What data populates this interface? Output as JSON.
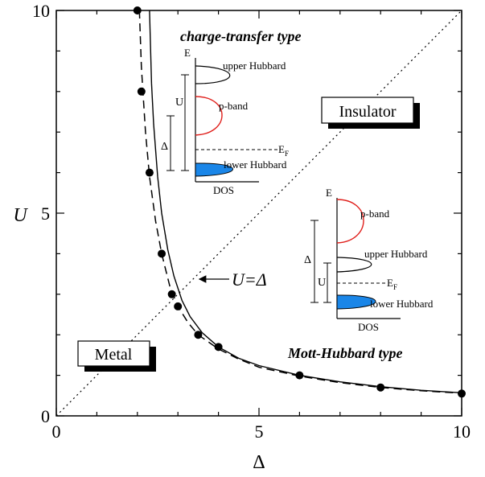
{
  "chart_data": {
    "type": "line",
    "xlabel": "Δ",
    "ylabel": "U",
    "xlim": [
      0,
      10
    ],
    "ylim": [
      0,
      10
    ],
    "x_ticks": [
      "0",
      "5",
      "10"
    ],
    "y_ticks": [
      "0",
      "5",
      "10"
    ],
    "grid": false,
    "series": [
      {
        "style": "points",
        "x": [
          2.0,
          2.1,
          2.3,
          2.6,
          2.85,
          3.0,
          3.5,
          4.0,
          6.0,
          8.0,
          10.0
        ],
        "y": [
          10.0,
          8.0,
          6.0,
          4.0,
          3.0,
          2.7,
          2.0,
          1.7,
          1.0,
          0.7,
          0.55
        ]
      },
      {
        "style": "dashed",
        "x": [
          2.05,
          2.1,
          2.2,
          2.3,
          2.45,
          2.6,
          2.8,
          3.0,
          3.25,
          3.5,
          4.0,
          4.5,
          5.0,
          6.0,
          7.0,
          8.0,
          9.0,
          10.0
        ],
        "y": [
          10.0,
          8.6,
          7.0,
          5.9,
          4.8,
          4.0,
          3.2,
          2.7,
          2.3,
          2.0,
          1.65,
          1.4,
          1.2,
          0.98,
          0.82,
          0.7,
          0.62,
          0.56
        ]
      },
      {
        "style": "solid",
        "x": [
          2.3,
          2.35,
          2.4,
          2.5,
          2.6,
          2.75,
          2.9,
          3.1,
          3.3,
          3.6,
          4.0,
          4.5,
          5.0,
          6.0,
          7.0,
          8.0,
          9.0,
          10.0
        ],
        "y": [
          10.0,
          8.2,
          7.2,
          5.9,
          5.0,
          4.1,
          3.45,
          2.85,
          2.45,
          2.05,
          1.7,
          1.42,
          1.24,
          1.0,
          0.84,
          0.72,
          0.63,
          0.57
        ]
      },
      {
        "style": "dotted",
        "x": [
          0,
          10
        ],
        "y": [
          0,
          10
        ]
      }
    ],
    "annotations": {
      "diagonal_label": "U=Δ",
      "insulator": "Insulator",
      "metal": "Metal",
      "charge_transfer_title": "charge-transfer type",
      "mott_hubbard_title": "Mott-Hubbard type"
    },
    "inset_charge_transfer": {
      "e_label": "E",
      "dos_label": "DOS",
      "upper": "upper Hubbard",
      "pband": "p-band",
      "fermi": "E",
      "fermi_sub": "F",
      "lower": "lower Hubbard",
      "u_label": "U",
      "delta_label": "Δ"
    },
    "inset_mott_hubbard": {
      "e_label": "E",
      "dos_label": "DOS",
      "pband": "p-band",
      "upper": "upper Hubbard",
      "fermi": "E",
      "fermi_sub": "F",
      "lower": "lower Hubbard",
      "delta_label": "Δ",
      "u_label": "U"
    },
    "colors": {
      "axes": "#000000",
      "pband": "#e0201c",
      "lower_band_fill": "#1a86e8"
    }
  }
}
